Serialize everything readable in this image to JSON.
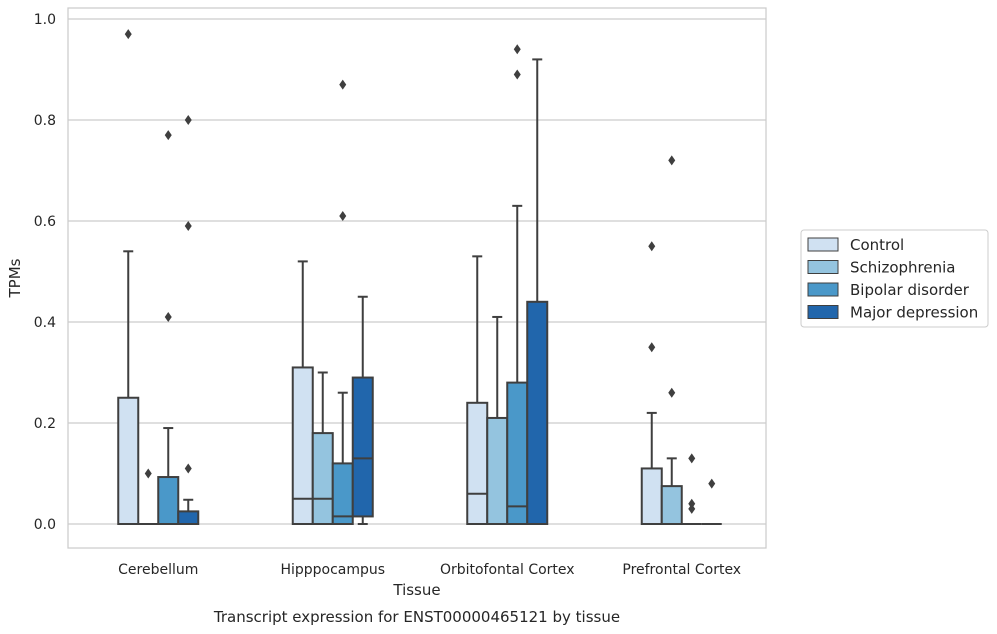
{
  "chart_data": {
    "type": "box",
    "title": "",
    "caption": "Transcript expression for ENST00000465121 by tissue",
    "xlabel": "Tissue",
    "ylabel": "TPMs",
    "ylim": [
      -0.045,
      1.02
    ],
    "yticks": [
      0.0,
      0.2,
      0.4,
      0.6,
      0.8,
      1.0
    ],
    "ytick_labels": [
      "0.0",
      "0.2",
      "0.4",
      "0.6",
      "0.8",
      "1.0"
    ],
    "grid": "horizontal",
    "legend_position": "right",
    "categories": [
      "Cerebellum",
      "Hipppocampus",
      "Orbitofontal Cortex",
      "Prefrontal Cortex"
    ],
    "series": [
      {
        "name": "Control",
        "color": "#d0e1f2",
        "boxes": [
          {
            "q1": 0.0,
            "median": 0.0,
            "q3": 0.25,
            "whisker_low": 0.0,
            "whisker_high": 0.54,
            "outliers": [
              0.97
            ]
          },
          {
            "q1": 0.0,
            "median": 0.05,
            "q3": 0.31,
            "whisker_low": 0.0,
            "whisker_high": 0.52,
            "outliers": []
          },
          {
            "q1": 0.0,
            "median": 0.06,
            "q3": 0.24,
            "whisker_low": 0.0,
            "whisker_high": 0.53,
            "outliers": []
          },
          {
            "q1": 0.0,
            "median": 0.0,
            "q3": 0.11,
            "whisker_low": 0.0,
            "whisker_high": 0.22,
            "outliers": [
              0.35,
              0.55
            ]
          }
        ]
      },
      {
        "name": "Schizophrenia",
        "color": "#94c4df",
        "boxes": [
          {
            "q1": 0.0,
            "median": 0.0,
            "q3": 0.0,
            "whisker_low": 0.0,
            "whisker_high": 0.0,
            "outliers": [
              0.1
            ]
          },
          {
            "q1": 0.0,
            "median": 0.05,
            "q3": 0.18,
            "whisker_low": 0.0,
            "whisker_high": 0.3,
            "outliers": []
          },
          {
            "q1": 0.0,
            "median": 0.0,
            "q3": 0.21,
            "whisker_low": 0.0,
            "whisker_high": 0.41,
            "outliers": []
          },
          {
            "q1": 0.0,
            "median": 0.0,
            "q3": 0.075,
            "whisker_low": 0.0,
            "whisker_high": 0.13,
            "outliers": [
              0.26,
              0.72
            ]
          }
        ]
      },
      {
        "name": "Bipolar disorder",
        "color": "#4a98c9",
        "boxes": [
          {
            "q1": 0.0,
            "median": 0.0,
            "q3": 0.093,
            "whisker_low": 0.0,
            "whisker_high": 0.19,
            "outliers": [
              0.41,
              0.77
            ]
          },
          {
            "q1": 0.0,
            "median": 0.015,
            "q3": 0.12,
            "whisker_low": 0.0,
            "whisker_high": 0.26,
            "outliers": [
              0.61,
              0.87
            ]
          },
          {
            "q1": 0.0,
            "median": 0.035,
            "q3": 0.28,
            "whisker_low": 0.0,
            "whisker_high": 0.63,
            "outliers": [
              0.89,
              0.94
            ]
          },
          {
            "q1": 0.0,
            "median": 0.0,
            "q3": 0.0,
            "whisker_low": 0.0,
            "whisker_high": 0.0,
            "outliers": [
              0.03,
              0.04,
              0.13
            ]
          }
        ]
      },
      {
        "name": "Major depression",
        "color": "#2166ac",
        "boxes": [
          {
            "q1": 0.0,
            "median": 0.0,
            "q3": 0.025,
            "whisker_low": 0.0,
            "whisker_high": 0.048,
            "outliers": [
              0.11,
              0.59,
              0.8
            ]
          },
          {
            "q1": 0.015,
            "median": 0.13,
            "q3": 0.29,
            "whisker_low": 0.0,
            "whisker_high": 0.45,
            "outliers": []
          },
          {
            "q1": 0.0,
            "median": 0.0,
            "q3": 0.44,
            "whisker_low": 0.0,
            "whisker_high": 0.92,
            "outliers": []
          },
          {
            "q1": 0.0,
            "median": 0.0,
            "q3": 0.0,
            "whisker_low": 0.0,
            "whisker_high": 0.0,
            "outliers": [
              0.08
            ]
          }
        ]
      }
    ]
  }
}
